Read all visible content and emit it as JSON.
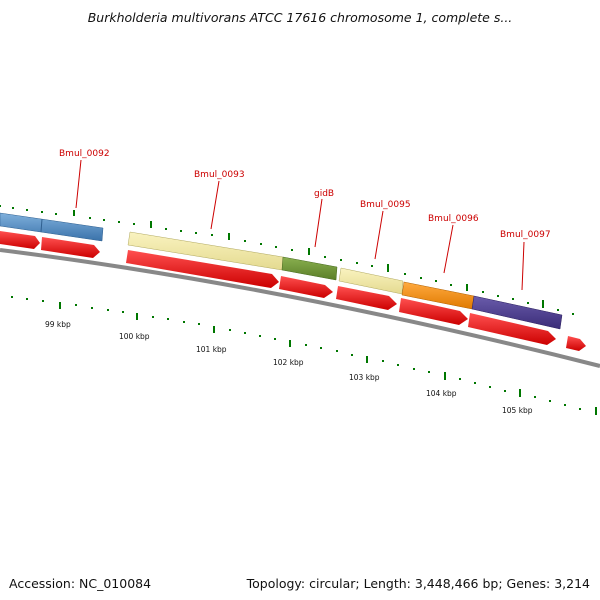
{
  "title": "Burkholderia multivorans ATCC 17616 chromosome 1, complete s...",
  "footer": {
    "accession": "Accession: NC_010084",
    "summary": "Topology: circular; Length: 3,448,466 bp; Genes: 3,214"
  },
  "gene_labels": [
    "Bmul_0092",
    "Bmul_0093",
    "gidB",
    "Bmul_0095",
    "Bmul_0096",
    "Bmul_0097"
  ],
  "kbp_labels": [
    "99 kbp",
    "100 kbp",
    "101 kbp",
    "102 kbp",
    "103 kbp",
    "104 kbp",
    "105 kbp"
  ],
  "colors": {
    "label_red": "#cc0000",
    "tick_green": "#007700",
    "backbone_gray": "#888888",
    "arrow_red": "#ee1111",
    "gene_blue": "#4a86c0",
    "gene_yellow": "#f0e8a0",
    "gene_green": "#6a9030",
    "gene_orange": "#f08a10",
    "gene_purple": "#4a3c88"
  }
}
